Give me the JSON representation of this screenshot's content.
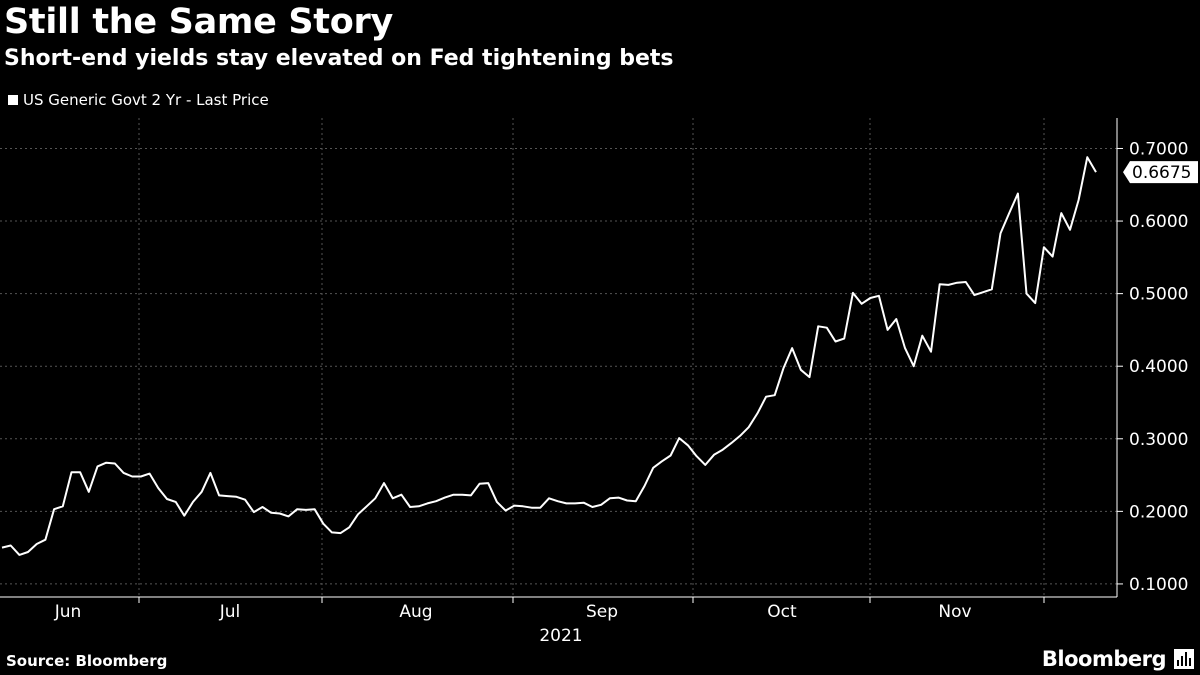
{
  "title": "Still the Same Story",
  "subtitle": "Short-end yields stay elevated on Fed tightening bets",
  "source": "Source: Bloomberg",
  "brand": "Bloomberg",
  "colors": {
    "background": "#000000",
    "line": "#ffffff",
    "grid": "#555555"
  },
  "chart_data": {
    "type": "line",
    "legend": [
      "US Generic Govt 2 Yr - Last Price"
    ],
    "series": [
      {
        "name": "US Generic Govt 2 Yr - Last Price",
        "values": [
          0.15,
          0.153,
          0.14,
          0.144,
          0.155,
          0.161,
          0.203,
          0.207,
          0.254,
          0.254,
          0.227,
          0.262,
          0.267,
          0.266,
          0.253,
          0.248,
          0.248,
          0.252,
          0.232,
          0.217,
          0.213,
          0.194,
          0.213,
          0.227,
          0.253,
          0.222,
          0.221,
          0.22,
          0.216,
          0.199,
          0.206,
          0.198,
          0.197,
          0.193,
          0.203,
          0.202,
          0.203,
          0.183,
          0.171,
          0.17,
          0.178,
          0.196,
          0.207,
          0.218,
          0.239,
          0.218,
          0.223,
          0.206,
          0.207,
          0.211,
          0.214,
          0.219,
          0.223,
          0.223,
          0.222,
          0.238,
          0.239,
          0.213,
          0.201,
          0.208,
          0.207,
          0.205,
          0.205,
          0.218,
          0.214,
          0.211,
          0.211,
          0.212,
          0.206,
          0.209,
          0.218,
          0.219,
          0.215,
          0.214,
          0.235,
          0.26,
          0.269,
          0.277,
          0.301,
          0.291,
          0.276,
          0.264,
          0.278,
          0.285,
          0.294,
          0.304,
          0.316,
          0.335,
          0.358,
          0.36,
          0.397,
          0.425,
          0.395,
          0.385,
          0.455,
          0.453,
          0.434,
          0.438,
          0.501,
          0.486,
          0.494,
          0.497,
          0.45,
          0.465,
          0.425,
          0.4,
          0.442,
          0.42,
          0.513,
          0.512,
          0.515,
          0.516,
          0.498,
          0.502,
          0.506,
          0.583,
          0.611,
          0.638,
          0.5,
          0.487,
          0.564,
          0.551,
          0.611,
          0.588,
          0.629,
          0.688,
          0.6675
        ]
      }
    ],
    "last_value_label": "0.6675",
    "y_ticks": [
      "0.1000",
      "0.2000",
      "0.3000",
      "0.4000",
      "0.5000",
      "0.6000",
      "0.7000"
    ],
    "y_tick_values": [
      0.1,
      0.2,
      0.3,
      0.4,
      0.5,
      0.6,
      0.7
    ],
    "ylim": [
      0.082,
      0.742
    ],
    "x_ticks": [
      "Jun",
      "Jul",
      "Aug",
      "Sep",
      "Oct",
      "Nov"
    ],
    "x_period_label": "2021",
    "grid": true
  }
}
